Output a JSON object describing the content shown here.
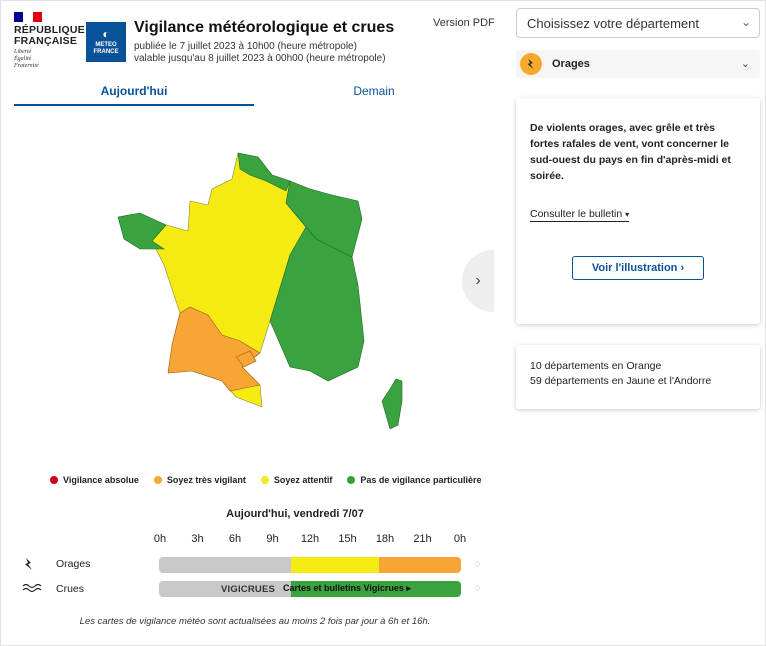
{
  "header": {
    "rf_name_line1": "RÉPUBLIQUE",
    "rf_name_line2": "FRANÇAISE",
    "rf_motto": [
      "Liberté",
      "Égalité",
      "Fraternité"
    ],
    "mf_logo_text": [
      "METEO",
      "FRANCE"
    ],
    "title": "Vigilance météorologique et crues",
    "published": "publiée le 7 juillet 2023 à 10h00 (heure métropole)",
    "valid_until": "valable jusqu'au 8 juillet 2023 à 00h00 (heure métropole)",
    "pdf_link": "Version PDF"
  },
  "tabs": {
    "today": "Aujourd'hui",
    "tomorrow": "Demain"
  },
  "legend": [
    {
      "label": "Vigilance absolue",
      "color": "#d0021b"
    },
    {
      "label": "Soyez très vigilant",
      "color": "#f7a92e"
    },
    {
      "label": "Soyez attentif",
      "color": "#f7e91e"
    },
    {
      "label": "Pas de vigilance particulière",
      "color": "#31a33a"
    }
  ],
  "colors": {
    "green": "#3aa33f",
    "yellow": "#f5ea12",
    "orange": "#f7a534",
    "grey": "#c8c8c8",
    "brand": "#0a5298"
  },
  "timeline": {
    "date": "Aujourd'hui, vendredi 7/07",
    "hours": [
      "0h",
      "3h",
      "6h",
      "9h",
      "12h",
      "15h",
      "18h",
      "21h",
      "0h"
    ],
    "rows": [
      {
        "icon": "lightning-icon",
        "label": "Orages",
        "segments": [
          {
            "from": 0,
            "to": 10.5,
            "level": "grey"
          },
          {
            "from": 10.5,
            "to": 17.5,
            "level": "yellow"
          },
          {
            "from": 17.5,
            "to": 24,
            "level": "orange"
          }
        ]
      },
      {
        "icon": "waves-icon",
        "label": "Crues",
        "segments": [
          {
            "from": 0,
            "to": 10.5,
            "level": "grey"
          },
          {
            "from": 10.5,
            "to": 24,
            "level": "green"
          }
        ]
      }
    ],
    "vigicrues_logo": "VIGICRUES",
    "vigicrues_link": "Cartes et bulletins Vigicrues ▸"
  },
  "footnote": "Les cartes de vigilance météo sont actualisées au moins 2 fois par jour à 6h et 16h.",
  "sidebar": {
    "department_select": "Choisissez votre département",
    "phenomenon": "Orages",
    "description": "De violents orages, avec grêle et très fortes rafales de vent, vont concerner le sud-ouest du pays en fin d'après-midi et soirée.",
    "bulletin_link": "Consulter le bulletin",
    "illustration_button": "Voir l'illustration",
    "summary": [
      "10 départements en Orange",
      "59 départements en Jaune et l'Andorre"
    ]
  }
}
